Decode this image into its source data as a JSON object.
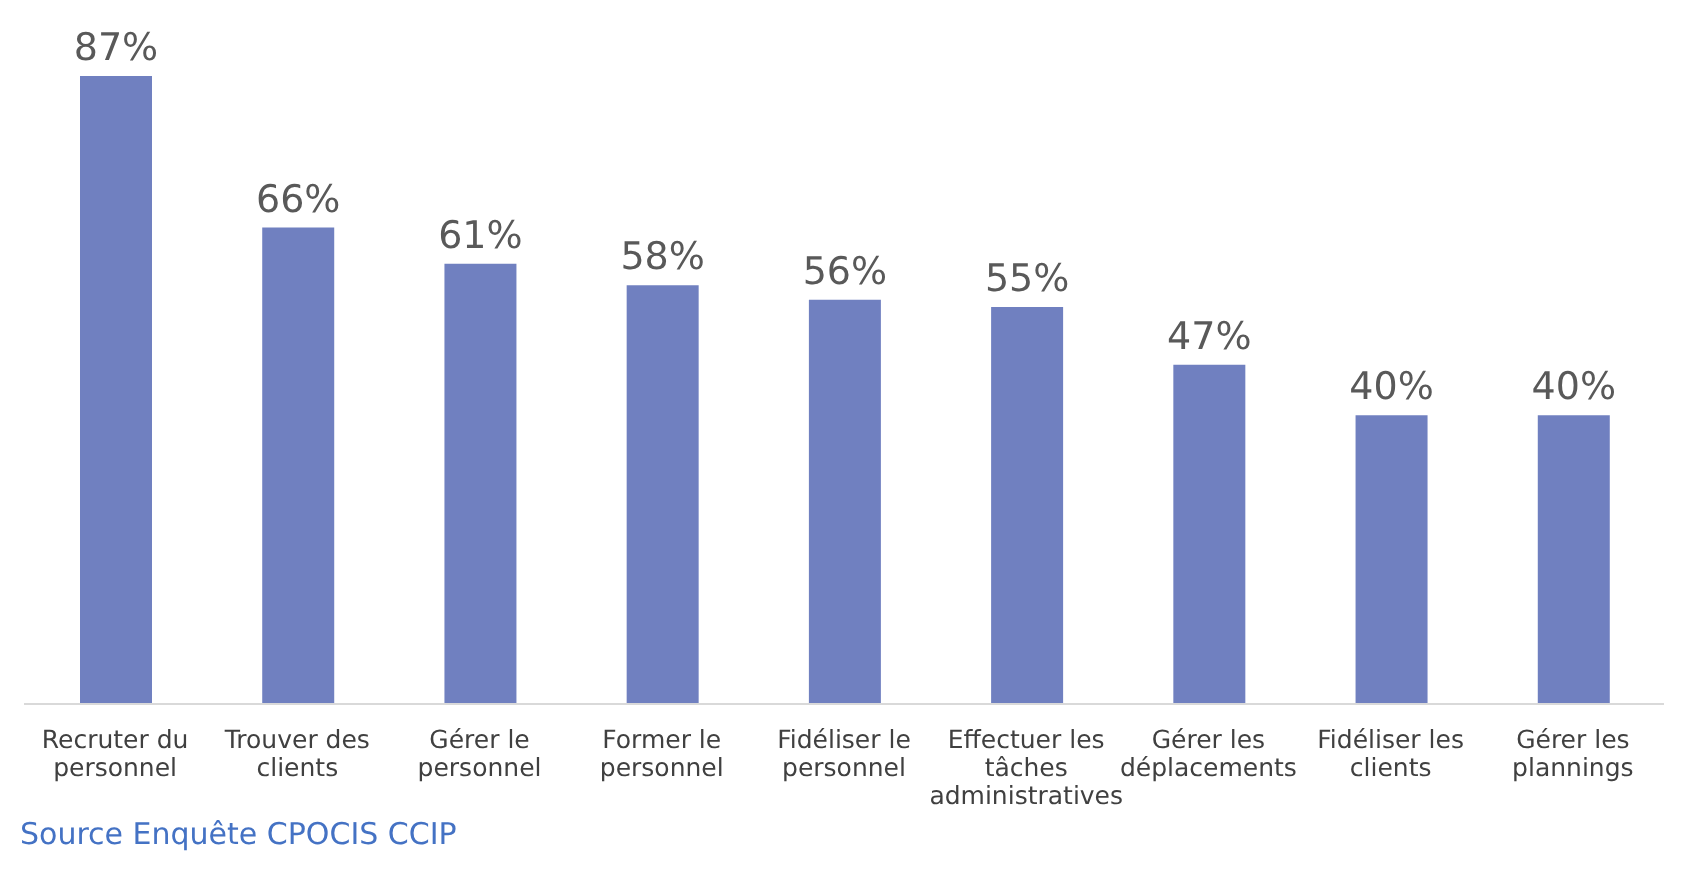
{
  "chart_data": {
    "type": "bar",
    "categories": [
      "Recruter du personnel",
      "Trouver des clients",
      "Gérer le personnel",
      "Former le personnel",
      "Fidéliser le personnel",
      "Effectuer les tâches administratives",
      "Gérer les déplacements",
      "Fidéliser les clients",
      "Gérer les plannings"
    ],
    "values": [
      87,
      66,
      61,
      58,
      56,
      55,
      47,
      40,
      40
    ],
    "value_labels": [
      "87%",
      "66%",
      "61%",
      "58%",
      "56%",
      "55%",
      "47%",
      "40%",
      "40%"
    ],
    "color": "#7080c0",
    "annotations": [
      "Source Enquête CPOCIS CCIP"
    ]
  }
}
